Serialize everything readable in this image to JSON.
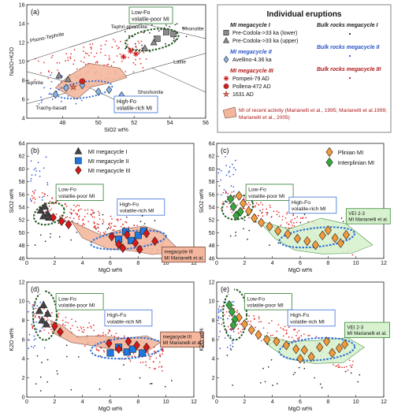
{
  "chart_data": [
    {
      "panel": "(a)",
      "type": "scatter",
      "xlabel": "SiO2 wt%",
      "ylabel": "Na2O+K2O",
      "xlim": [
        46,
        56
      ],
      "ylim": [
        4,
        16
      ],
      "xticks": [
        48,
        50,
        52,
        54,
        56
      ],
      "yticks": [
        4,
        6,
        8,
        10,
        12,
        14,
        16
      ],
      "fields": [
        "Phono-Tephrite",
        "Tephri-phonolite",
        "Phonolite",
        "Tephrite",
        "Trachy-basalt",
        "Shoshonite",
        "Latite"
      ],
      "annotations": [
        {
          "text": "Low-Fo volatile-poor MI",
          "lines": [
            "Low-Fo",
            "volatile-poor MI"
          ]
        },
        {
          "text": "High-Fo volatile-rich MI",
          "lines": [
            "High-Fo",
            "volatile-rich MI"
          ]
        }
      ],
      "series": [
        {
          "name": "Pre-Codola->33 ka (lower)",
          "marker": "square",
          "color": "#8c8c8c",
          "x": [
            53.3,
            53.8,
            54.2
          ],
          "y": [
            12.4,
            13.1,
            12.9
          ]
        },
        {
          "name": "Pre-Codola->33 ka (upper)",
          "marker": "triangle",
          "color": "#8c8c8c",
          "x": [
            52.6,
            53.1,
            47.8,
            48.3
          ],
          "y": [
            11.4,
            12.0,
            8.5,
            8.1
          ]
        },
        {
          "name": "Avellino-4.36 ka",
          "marker": "diamond",
          "color": "#8ab4e8",
          "x": [
            47.6,
            48.2,
            49.1,
            50.0,
            50.6,
            51.3
          ],
          "y": [
            6.5,
            7.2,
            7.5,
            6.8,
            7.0,
            6.4
          ]
        },
        {
          "name": "Pompeii-79 AD",
          "marker": "asterisk",
          "color": "#d12020",
          "x": [
            51.4,
            51.8,
            52.1
          ],
          "y": [
            10.5,
            11.1,
            10.8
          ]
        },
        {
          "name": "Pollena-472 AD",
          "marker": "circle",
          "color": "#d12020",
          "x": [
            49.1
          ],
          "y": [
            7.9
          ]
        },
        {
          "name": "1631 AD",
          "marker": "star",
          "color": "#e07a6a",
          "x": [
            48.6
          ],
          "y": [
            7.3
          ]
        }
      ]
    },
    {
      "panel": "(b)",
      "type": "scatter",
      "xlabel": "MgO wt%",
      "ylabel": "SiO2 wt%",
      "xlim": [
        0,
        12
      ],
      "ylim": [
        46,
        64
      ],
      "xticks": [
        0,
        2,
        4,
        6,
        8,
        10,
        12
      ],
      "yticks": [
        46,
        48,
        50,
        52,
        54,
        56,
        58,
        60,
        62,
        64
      ],
      "annotations": [
        {
          "text": "Low-Fo volatile-poor MI",
          "lines": [
            "Low-Fo",
            "volatile-poor MI"
          ]
        },
        {
          "text": "High-Fo volatile-rich MI",
          "lines": [
            "High-Fo",
            "volatile-rich MI"
          ]
        },
        {
          "text": "megacycle III MI Marianelli et al.",
          "lines": [
            "megacycle III",
            "MI Marianelli et al."
          ]
        }
      ],
      "series": [
        {
          "name": "MI megacycle I",
          "marker": "triangle",
          "color": "#444444",
          "x": [
            1.0,
            1.3,
            1.5,
            1.6,
            1.2
          ],
          "y": [
            53.5,
            54.1,
            53.0,
            52.4,
            52.6
          ]
        },
        {
          "name": "MI megacycle II",
          "marker": "square",
          "color": "#1f77e0",
          "x": [
            6.6,
            7.1,
            7.5,
            8.0,
            8.4
          ],
          "y": [
            49.0,
            50.2,
            48.8,
            49.6,
            50.3
          ]
        },
        {
          "name": "MI megacycle III",
          "marker": "diamond",
          "color": "#d61818",
          "x": [
            1.9,
            2.5,
            3.0,
            6.1,
            6.6,
            7.2,
            7.8,
            8.6,
            9.2,
            6.9,
            8.1
          ],
          "y": [
            52.4,
            51.8,
            51.3,
            49.4,
            48.2,
            49.7,
            48.4,
            49.9,
            48.7,
            47.6,
            47.4
          ]
        }
      ]
    },
    {
      "panel": "(c)",
      "type": "scatter",
      "xlabel": "MgO wt%",
      "ylabel": "SiO2 wt%",
      "xlim": [
        0,
        12
      ],
      "ylim": [
        46,
        64
      ],
      "xticks": [
        0,
        2,
        4,
        6,
        8,
        10,
        12
      ],
      "yticks": [
        46,
        48,
        50,
        52,
        54,
        56,
        58,
        60,
        62,
        64
      ],
      "annotations": [
        {
          "text": "Low-Fo volatile-poor MI",
          "lines": [
            "Low-Fo",
            "volatile-poor MI"
          ]
        },
        {
          "text": "High-Fo volatile-rich MI",
          "lines": [
            "High-Fo",
            "volatile-rich MI"
          ]
        },
        {
          "text": "VEI 2-3 MI Marianelli et al.",
          "lines": [
            "VEI 2-3",
            "MI Marianelli et al."
          ]
        }
      ],
      "series": [
        {
          "name": "Plinian MI",
          "marker": "diamond",
          "color": "#f29a3c",
          "x": [
            1.6,
            1.9,
            2.3,
            2.7,
            3.2,
            3.8,
            4.4,
            5.1,
            5.8,
            6.5,
            7.1,
            7.6,
            8.0,
            8.5,
            8.9,
            9.3
          ],
          "y": [
            55.8,
            54.6,
            53.4,
            52.3,
            51.6,
            51.0,
            50.3,
            49.8,
            49.1,
            48.7,
            48.1,
            49.6,
            50.4,
            49.2,
            48.4,
            49.7
          ]
        },
        {
          "name": "Interplinian MI",
          "marker": "diamond",
          "color": "#36a83a",
          "x": [
            1.0,
            1.2,
            1.4,
            1.7
          ],
          "y": [
            55.3,
            54.1,
            52.7,
            53.3
          ]
        }
      ]
    },
    {
      "panel": "(d)",
      "type": "scatter",
      "xlabel": "MgO wt%",
      "ylabel": "K2O wt%",
      "xlim": [
        0,
        12
      ],
      "ylim": [
        0,
        12
      ],
      "xticks": [
        0,
        2,
        4,
        6,
        8,
        10,
        12
      ],
      "yticks": [
        0,
        2,
        4,
        6,
        8,
        10,
        12
      ],
      "annotations": [
        {
          "text": "Low-Fo volatile-poor MI",
          "lines": [
            "Low-Fo",
            "volatile-poor MI"
          ]
        },
        {
          "text": "High-Fo volatile-rich MI",
          "lines": [
            "High-Fo",
            "volatile-rich MI"
          ]
        },
        {
          "text": "megacycle III MI Marianelli et al.",
          "lines": [
            "megacycle III",
            "MI Marianelli et al."
          ]
        }
      ],
      "series": [
        {
          "name": "MI megacycle I",
          "marker": "triangle",
          "color": "#444444",
          "x": [
            0.9,
            1.2,
            1.5,
            1.1,
            1.4
          ],
          "y": [
            9.0,
            9.6,
            8.7,
            8.0,
            7.6
          ]
        },
        {
          "name": "MI megacycle II",
          "marker": "square",
          "color": "#1f77e0",
          "x": [
            6.0,
            6.6,
            7.2,
            7.6,
            8.3
          ],
          "y": [
            4.6,
            5.2,
            4.7,
            5.0,
            4.6
          ]
        },
        {
          "name": "MI megacycle III",
          "marker": "diamond",
          "color": "#d61818",
          "x": [
            2.0,
            2.4,
            5.9,
            6.6,
            7.3,
            7.9,
            8.6
          ],
          "y": [
            7.4,
            6.8,
            5.6,
            5.0,
            5.8,
            5.4,
            5.2
          ]
        }
      ]
    },
    {
      "panel": "(e)",
      "type": "scatter",
      "xlabel": "MgO wt%",
      "ylabel": "K2O wt%",
      "xlim": [
        0,
        12
      ],
      "ylim": [
        0,
        12
      ],
      "xticks": [
        0,
        2,
        4,
        6,
        8,
        10,
        12
      ],
      "yticks": [
        0,
        2,
        4,
        6,
        8,
        10,
        12
      ],
      "annotations": [
        {
          "text": "Low-Fo volatile-poor MI",
          "lines": [
            "Low-Fo",
            "volatile-poor MI"
          ]
        },
        {
          "text": "High-Fo volatile-rich MI",
          "lines": [
            "High-Fo",
            "volatile-rich MI"
          ]
        },
        {
          "text": "VEI 2-3 MI Marianelli et al.",
          "lines": [
            "VEI 2-3",
            "MI Marianelli et al."
          ]
        }
      ],
      "series": [
        {
          "name": "Plinian MI",
          "marker": "diamond",
          "color": "#f29a3c",
          "x": [
            1.6,
            2.0,
            2.5,
            3.0,
            3.6,
            4.3,
            5.0,
            5.7,
            6.3,
            6.8,
            7.4,
            7.9,
            8.3,
            8.8,
            9.2,
            6.0
          ],
          "y": [
            8.3,
            7.6,
            7.0,
            6.5,
            6.0,
            5.8,
            5.4,
            5.0,
            4.9,
            4.2,
            5.2,
            5.8,
            4.6,
            5.1,
            5.5,
            4.0
          ]
        },
        {
          "name": "Interplinian MI",
          "marker": "diamond",
          "color": "#36a83a",
          "x": [
            0.9,
            1.1,
            1.3,
            1.2
          ],
          "y": [
            9.6,
            8.9,
            8.1,
            7.5
          ]
        }
      ]
    }
  ],
  "legend": {
    "title": "Individual eruptions",
    "groups": [
      {
        "heading": "MI megacycle I",
        "color": "#222222",
        "items": [
          {
            "label": "Pre-Codola->33 ka (lower)",
            "marker": "square",
            "color": "#8c8c8c"
          },
          {
            "label": "Pre-Codola->33 ka (upper)",
            "marker": "triangle",
            "color": "#8c8c8c"
          }
        ]
      },
      {
        "heading": "MI megacycle II",
        "color": "#2a55c8",
        "items": [
          {
            "label": "Avellino-4.36 ka",
            "marker": "diamond",
            "color": "#8ab4e8"
          }
        ]
      },
      {
        "heading": "MI megacycle III",
        "color": "#b01818",
        "items": [
          {
            "label": "Pompeii-79 AD",
            "marker": "asterisk",
            "color": "#d12020"
          },
          {
            "label": "Pollena-472 AD",
            "marker": "circle",
            "color": "#d12020"
          },
          {
            "label": "1631 AD",
            "marker": "star",
            "color": "#e07a6a"
          }
        ]
      }
    ],
    "bulk": [
      {
        "label": "Bulk rocks megacycle I",
        "color": "#222222"
      },
      {
        "label": "Bulk rocks megacycle II",
        "color": "#2a55c8"
      },
      {
        "label": "Bulk rocks megacycle III",
        "color": "#b01818"
      }
    ],
    "recent": {
      "lines": [
        "MI of recent activity (Marianelli et al., 1995; Marianelli et al.1999;",
        "Marianelli et al., 2005)"
      ],
      "color": "#b01818"
    }
  },
  "colors": {
    "bulk_red": "#e62828",
    "bulk_blue": "#2a55d8",
    "bulk_black": "#222222",
    "field_salmon": "#f3b79e",
    "field_green": "#d8f2cf",
    "ellipse_green": "#1f5a1f",
    "ellipse_blue": "#2a6ed8",
    "box_green": "#2e7d32",
    "box_blue": "#3b6fd6"
  }
}
